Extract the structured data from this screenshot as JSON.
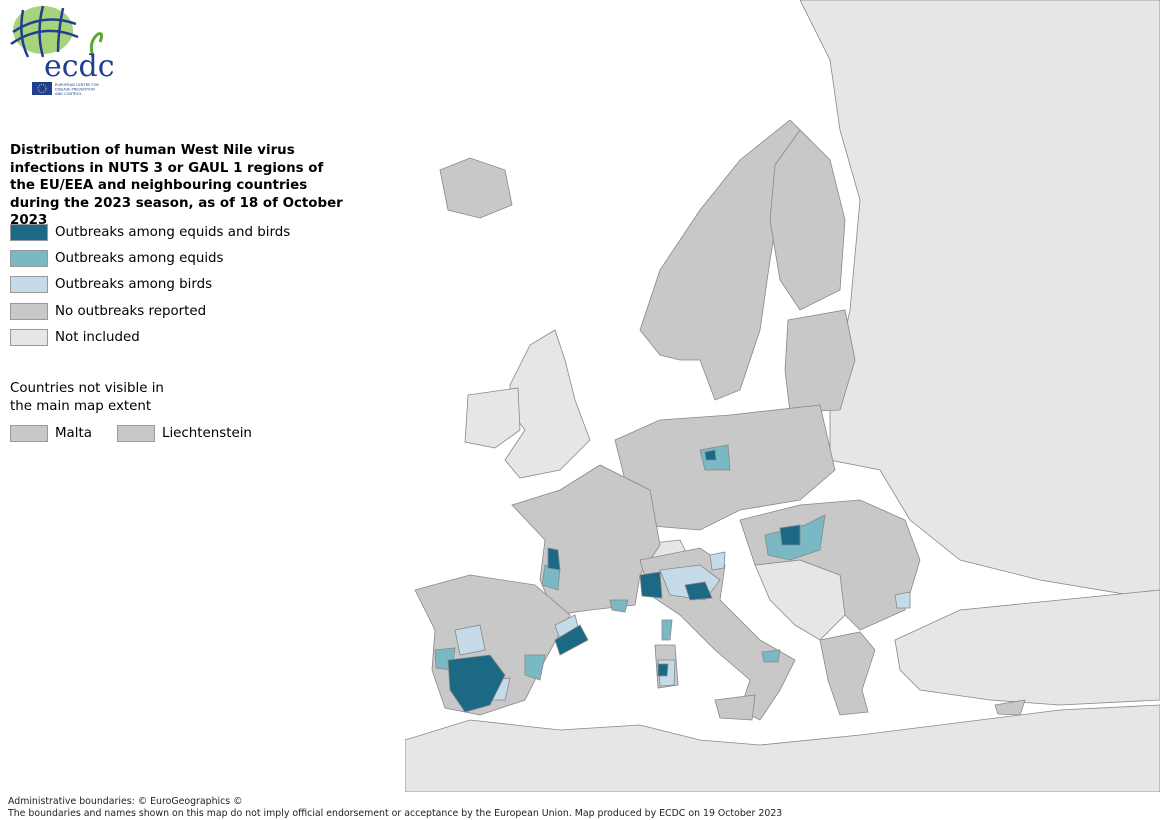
{
  "logo": {
    "text": "ecdc",
    "subtitle": "EUROPEAN CENTRE FOR DISEASE PREVENTION AND CONTROL"
  },
  "title": "Distribution of human West Nile virus infections in NUTS 3 or GAUL 1 regions of the EU/EEA and neighbouring countries during the 2023 season, as of 18 of October 2023",
  "legend": [
    {
      "label": "Outbreaks among equids and birds",
      "color": "#1b6985"
    },
    {
      "label": "Outbreaks among equids",
      "color": "#7ab9c3"
    },
    {
      "label": "Outbreaks among birds",
      "color": "#c5dbe9"
    },
    {
      "label": "No outbreaks reported",
      "color": "#c8c8c8"
    },
    {
      "label": "Not included",
      "color": "#e6e6e6"
    }
  ],
  "not_visible": {
    "title": "Countries not visible in the main map extent",
    "countries": [
      {
        "label": "Malta",
        "color": "#c8c8c8"
      },
      {
        "label": "Liechtenstein",
        "color": "#c8c8c8"
      }
    ]
  },
  "footer": {
    "line1": "Administrative boundaries: © EuroGeographics ©",
    "line2": "The boundaries and names shown on this map do not imply official endorsement or acceptance by the European Union. Map produced by ECDC on 19 October 2023"
  }
}
